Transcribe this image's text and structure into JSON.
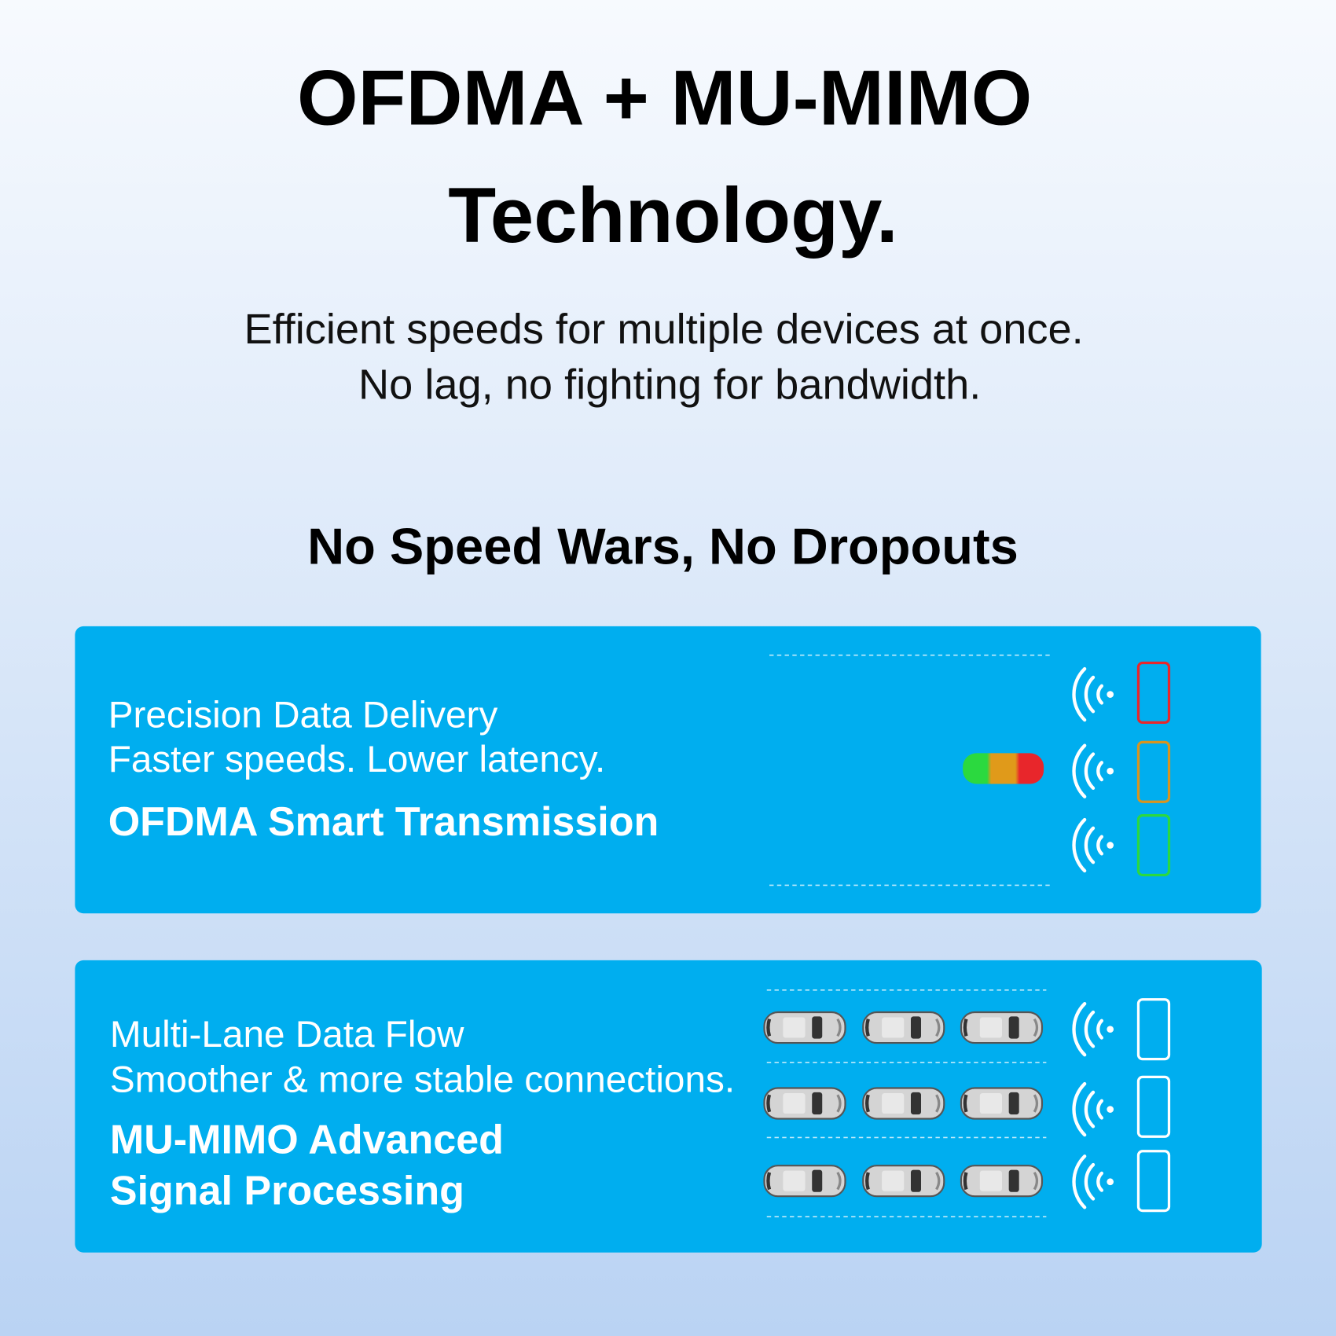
{
  "header": {
    "title": [
      "OFDMA + MU-MIMO",
      "Technology."
    ],
    "subtitle": [
      "Efficient speeds for multiple devices at once.",
      "No lag, no fighting for bandwidth."
    ]
  },
  "section": {
    "heading": "No Speed Wars, No Dropouts"
  },
  "cards": [
    {
      "lines": [
        "Precision Data Delivery",
        "Faster speeds. Lower latency."
      ],
      "title": [
        "OFDMA Smart Transmission"
      ]
    },
    {
      "lines": [
        "Multi-Lane Data Flow",
        "Smoother & more stable connections."
      ],
      "title": [
        "MU-MIMO Advanced",
        "Signal Processing"
      ]
    }
  ]
}
